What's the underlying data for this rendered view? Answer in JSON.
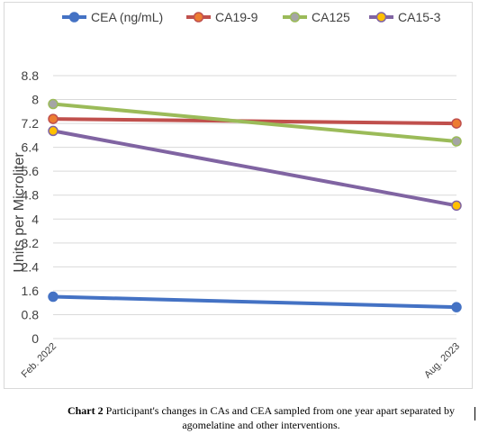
{
  "chart_data": {
    "type": "line",
    "categories": [
      "Feb. 2022",
      "Aug. 2023"
    ],
    "ylabel": "Units per Microliter",
    "ylim": [
      0,
      8.8
    ],
    "yticks": [
      0,
      0.8,
      1.6,
      2.4,
      3.2,
      4,
      4.8,
      5.6,
      6.4,
      7.2,
      8,
      8.8
    ],
    "grid": true,
    "legend_position": "top",
    "series": [
      {
        "name": "CEA (ng/mL)",
        "color": "#4472C4",
        "marker_color": "#4472C4",
        "values": [
          1.4,
          1.05
        ]
      },
      {
        "name": "CA19-9",
        "color": "#C0504D",
        "marker_color": "#ED7D31",
        "values": [
          7.35,
          7.2
        ]
      },
      {
        "name": "CA125",
        "color": "#9BBB59",
        "marker_color": "#A5A5A5",
        "values": [
          7.85,
          6.6
        ]
      },
      {
        "name": "CA15-3",
        "color": "#8064A2",
        "marker_color": "#FFC000",
        "values": [
          6.95,
          4.45
        ]
      }
    ]
  },
  "caption": {
    "label": "Chart 2",
    "text": "Participant's changes in CAs and CEA sampled from one year apart separated by agomelatine and other interventions."
  }
}
